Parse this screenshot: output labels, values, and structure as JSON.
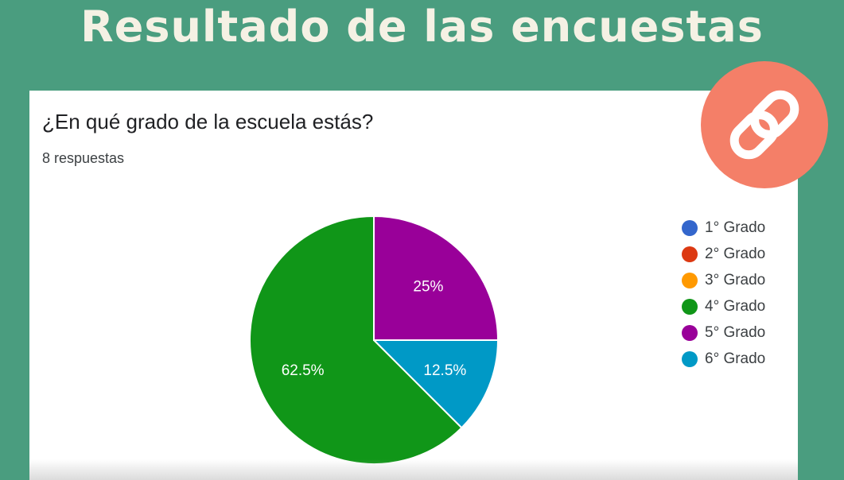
{
  "page_title": "Resultado de las encuestas",
  "question": "¿En qué grado de la escuela estás?",
  "response_count": "8 respuestas",
  "link_icon": "link-icon",
  "colors": {
    "background": "#4a9d7f",
    "title": "#f5f1e4",
    "link_badge": "#f47f68"
  },
  "chart_data": {
    "type": "pie",
    "title": "¿En qué grado de la escuela estás?",
    "legend_position": "right",
    "categories": [
      "1° Grado",
      "2° Grado",
      "3° Grado",
      "4° Grado",
      "5° Grado",
      "6° Grado"
    ],
    "values": [
      0,
      0,
      0,
      62.5,
      25,
      12.5
    ],
    "labels": [
      "",
      "",
      "",
      "62.5%",
      "25%",
      "12.5%"
    ],
    "colors": [
      "#3366cc",
      "#dc3912",
      "#ff9900",
      "#109618",
      "#990099",
      "#0099c6"
    ],
    "start_angle_deg": 90
  }
}
